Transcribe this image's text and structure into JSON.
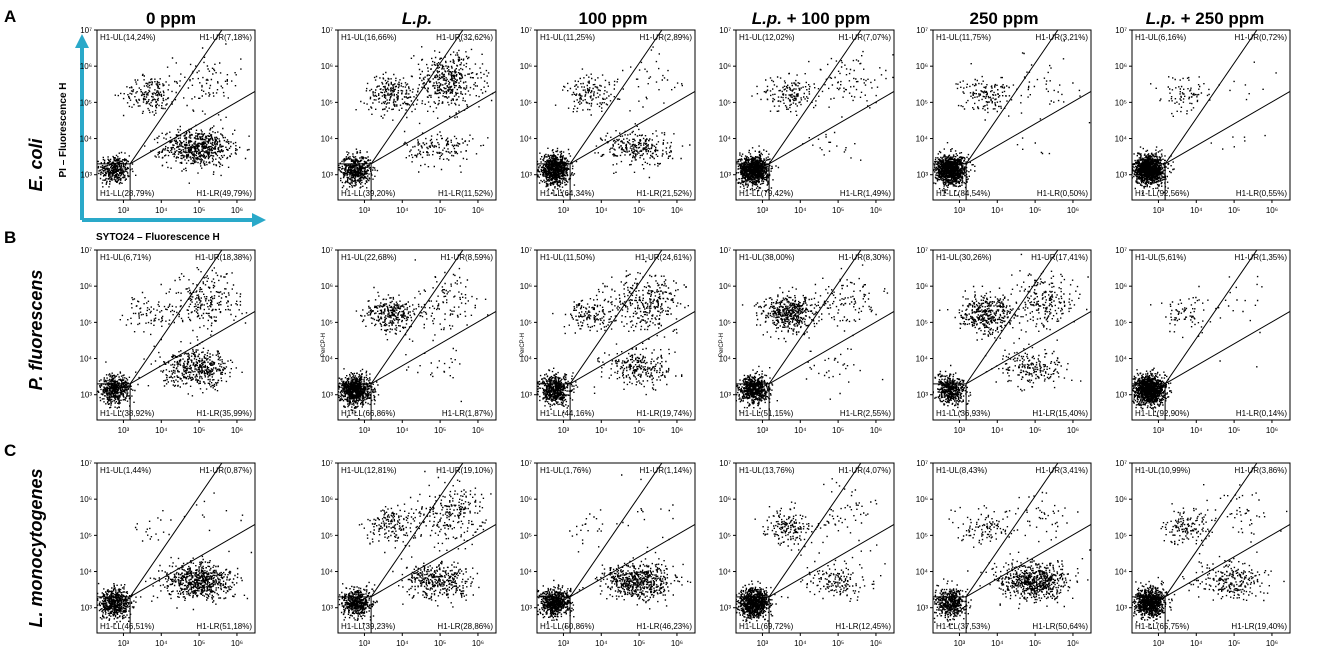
{
  "panel_letters": [
    "A",
    "B",
    "C"
  ],
  "column_headers": [
    {
      "text": "0 ppm",
      "italic": false
    },
    {
      "text": "L.p.",
      "italic": true
    },
    {
      "text": "100 ppm",
      "italic": false
    },
    {
      "text": "L.p. + 100 ppm",
      "italic": "prefix"
    },
    {
      "text": "250 ppm",
      "italic": false
    },
    {
      "text": "L.p. + 250 ppm",
      "italic": "prefix"
    }
  ],
  "row_labels": [
    "E. coli",
    "P. fluorescens",
    "L. monocytogenes"
  ],
  "axis_labels": {
    "y": "PI – Fluorescence H",
    "x": "SYTO24 – Fluorescence H",
    "ylabel_small": "PerCP-H"
  },
  "x_tick_labels": [
    "10³",
    "10⁴",
    "10⁵",
    "10⁶"
  ],
  "y_tick_labels": [
    "10³",
    "10⁴",
    "10⁵",
    "10⁶",
    "10⁷"
  ],
  "accent_color": "#2aa9c9",
  "chart_data": {
    "type": "scatter",
    "description_kind": "flow cytometry dot plots with quadrant gates",
    "x_scale": "log",
    "y_scale": "log",
    "xlim": [
      200,
      3000000
    ],
    "ylim": [
      200,
      10000000
    ],
    "panels": [
      {
        "row": "E. coli",
        "col": "0 ppm",
        "quadrants": {
          "UL": "H1-UL(14,24%)",
          "UR": "H1-UR(7,18%)",
          "LL": "H1-LL(28,79%)",
          "LR": "H1-LR(49,79%)"
        },
        "values": {
          "UL": 14.24,
          "UR": 7.18,
          "LL": 28.79,
          "LR": 49.79
        }
      },
      {
        "row": "E. coli",
        "col": "L.p.",
        "quadrants": {
          "UL": "H1-UL(16,66%)",
          "UR": "H1-UR(32,62%)",
          "LL": "H1-LL(39,20%)",
          "LR": "H1-LR(11,52%)"
        },
        "values": {
          "UL": 16.66,
          "UR": 32.62,
          "LL": 39.2,
          "LR": 11.52
        }
      },
      {
        "row": "E. coli",
        "col": "100 ppm",
        "quadrants": {
          "UL": "H1-UL(11,25%)",
          "UR": "H1-UR(2,89%)",
          "LL": "H1-LL(64,34%)",
          "LR": "H1-LR(21,52%)"
        },
        "values": {
          "UL": 11.25,
          "UR": 2.89,
          "LL": 64.34,
          "LR": 21.52
        }
      },
      {
        "row": "E. coli",
        "col": "L.p. + 100 ppm",
        "quadrants": {
          "UL": "H1-UL(12,02%)",
          "UR": "H1-UR(7,07%)",
          "LL": "H1-LL(79,42%)",
          "LR": "H1-LR(1,49%)"
        },
        "values": {
          "UL": 12.02,
          "UR": 7.07,
          "LL": 79.42,
          "LR": 1.49
        }
      },
      {
        "row": "E. coli",
        "col": "250 ppm",
        "quadrants": {
          "UL": "H1-UL(11,75%)",
          "UR": "H1-UR(3,21%)",
          "LL": "H1-LL(84,54%)",
          "LR": "H1-LR(0,50%)"
        },
        "values": {
          "UL": 11.75,
          "UR": 3.21,
          "LL": 84.54,
          "LR": 0.5
        }
      },
      {
        "row": "E. coli",
        "col": "L.p. + 250 ppm",
        "quadrants": {
          "UL": "H1-UL(6,16%)",
          "UR": "H1-UR(0,72%)",
          "LL": "H1-LL(92,56%)",
          "LR": "H1-LR(0,55%)"
        },
        "values": {
          "UL": 6.16,
          "UR": 0.72,
          "LL": 92.56,
          "LR": 0.55
        }
      },
      {
        "row": "P. fluorescens",
        "col": "0 ppm",
        "quadrants": {
          "UL": "H1-UL(6,71%)",
          "UR": "H1-UR(18,38%)",
          "LL": "H1-LL(38,92%)",
          "LR": "H1-LR(35,99%)"
        },
        "values": {
          "UL": 6.71,
          "UR": 18.38,
          "LL": 38.92,
          "LR": 35.99
        }
      },
      {
        "row": "P. fluorescens",
        "col": "L.p.",
        "quadrants": {
          "UL": "H1-UL(22,68%)",
          "UR": "H1-UR(8,59%)",
          "LL": "H1-LL(66,86%)",
          "LR": "H1-LR(1,87%)"
        },
        "values": {
          "UL": 22.68,
          "UR": 8.59,
          "LL": 66.86,
          "LR": 1.87
        }
      },
      {
        "row": "P. fluorescens",
        "col": "100 ppm",
        "quadrants": {
          "UL": "H1-UL(11,50%)",
          "UR": "H1-UR(24,61%)",
          "LL": "H1-LL(44,16%)",
          "LR": "H1-LR(19,74%)"
        },
        "values": {
          "UL": 11.5,
          "UR": 24.61,
          "LL": 44.16,
          "LR": 19.74
        }
      },
      {
        "row": "P. fluorescens",
        "col": "L.p. + 100 ppm",
        "quadrants": {
          "UL": "H1-UL(38,00%)",
          "UR": "H1-UR(8,30%)",
          "LL": "H1-LL(51,15%)",
          "LR": "H1-LR(2,55%)"
        },
        "values": {
          "UL": 38.0,
          "UR": 8.3,
          "LL": 51.15,
          "LR": 2.55
        }
      },
      {
        "row": "P. fluorescens",
        "col": "250 ppm",
        "quadrants": {
          "UL": "H1-UL(30,26%)",
          "UR": "H1-UR(17,41%)",
          "LL": "H1-LL(36,93%)",
          "LR": "H1-LR(15,40%)"
        },
        "values": {
          "UL": 30.26,
          "UR": 17.41,
          "LL": 36.93,
          "LR": 15.4
        }
      },
      {
        "row": "P. fluorescens",
        "col": "L.p. + 250 ppm",
        "quadrants": {
          "UL": "H1-UL(5,61%)",
          "UR": "H1-UR(1,35%)",
          "LL": "H1-LL(92,90%)",
          "LR": "H1-LR(0,14%)"
        },
        "values": {
          "UL": 5.61,
          "UR": 1.35,
          "LL": 92.9,
          "LR": 0.14
        }
      },
      {
        "row": "L. monocytogenes",
        "col": "0 ppm",
        "quadrants": {
          "UL": "H1-UL(1,44%)",
          "UR": "H1-UR(0,87%)",
          "LL": "H1-LL(46,51%)",
          "LR": "H1-LR(51,18%)"
        },
        "values": {
          "UL": 1.44,
          "UR": 0.87,
          "LL": 46.51,
          "LR": 51.18
        }
      },
      {
        "row": "L. monocytogenes",
        "col": "L.p.",
        "quadrants": {
          "UL": "H1-UL(12,81%)",
          "UR": "H1-UR(19,10%)",
          "LL": "H1-LL(39,23%)",
          "LR": "H1-LR(28,86%)"
        },
        "values": {
          "UL": 12.81,
          "UR": 19.1,
          "LL": 39.23,
          "LR": 28.86
        }
      },
      {
        "row": "L. monocytogenes",
        "col": "100 ppm",
        "quadrants": {
          "UL": "H1-UL(1,76%)",
          "UR": "H1-UR(1,14%)",
          "LL": "H1-LL(50,86%)",
          "LR": "H1-LR(46,23%)"
        },
        "values": {
          "UL": 1.76,
          "UR": 1.14,
          "LL": 50.86,
          "LR": 46.23
        }
      },
      {
        "row": "L. monocytogenes",
        "col": "L.p. + 100 ppm",
        "quadrants": {
          "UL": "H1-UL(13,76%)",
          "UR": "H1-UR(4,07%)",
          "LL": "H1-LL(69,72%)",
          "LR": "H1-LR(12,45%)"
        },
        "values": {
          "UL": 13.76,
          "UR": 4.07,
          "LL": 69.72,
          "LR": 12.45
        }
      },
      {
        "row": "L. monocytogenes",
        "col": "250 ppm",
        "quadrants": {
          "UL": "H1-UL(8,43%)",
          "UR": "H1-UR(3,41%)",
          "LL": "H1-LL(37,53%)",
          "LR": "H1-LR(50,64%)"
        },
        "values": {
          "UL": 8.43,
          "UR": 3.41,
          "LL": 37.53,
          "LR": 50.64
        }
      },
      {
        "row": "L. monocytogenes",
        "col": "L.p. + 250 ppm",
        "quadrants": {
          "UL": "H1-UL(10,99%)",
          "UR": "H1-UR(3,86%)",
          "LL": "H1-LL(65,75%)",
          "LR": "H1-LR(19,40%)"
        },
        "values": {
          "UL": 10.99,
          "UR": 3.86,
          "LL": 65.75,
          "LR": 19.4
        }
      }
    ]
  }
}
